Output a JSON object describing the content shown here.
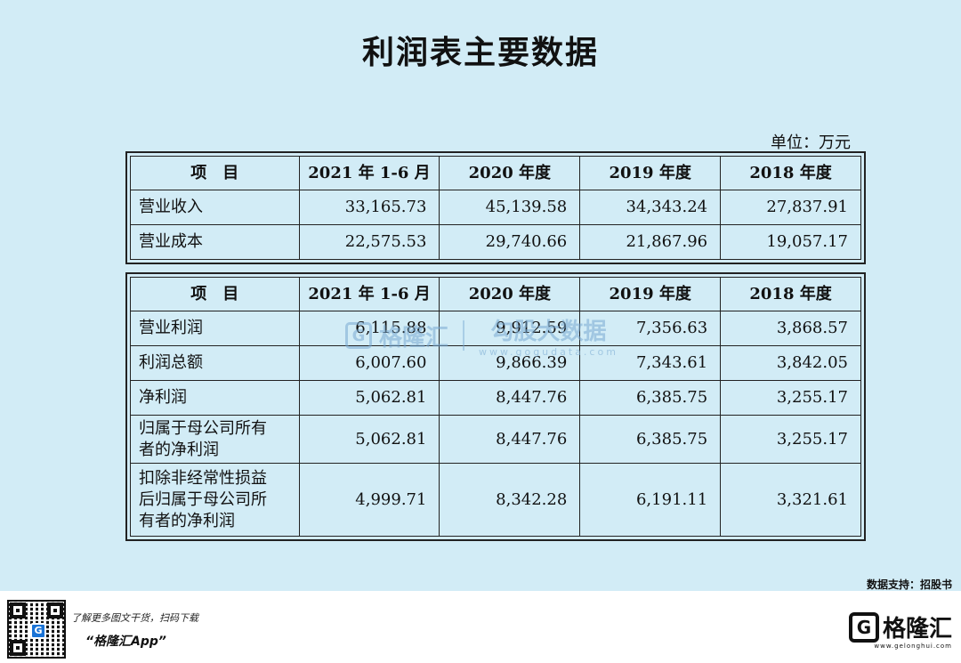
{
  "title": "利润表主要数据",
  "unit": "单位：万元",
  "table1": {
    "headers": [
      "项　目",
      "2021 年 1-6 月",
      "2020 年度",
      "2019 年度",
      "2018 年度"
    ],
    "rows": [
      {
        "label": "营业收入",
        "values": [
          "33,165.73",
          "45,139.58",
          "34,343.24",
          "27,837.91"
        ]
      },
      {
        "label": "营业成本",
        "values": [
          "22,575.53",
          "29,740.66",
          "21,867.96",
          "19,057.17"
        ]
      }
    ]
  },
  "table2": {
    "headers": [
      "项　目",
      "2021 年 1-6 月",
      "2020 年度",
      "2019 年度",
      "2018 年度"
    ],
    "rows": [
      {
        "label": "营业利润",
        "values": [
          "6,115.88",
          "9,912.59",
          "7,356.63",
          "3,868.57"
        ]
      },
      {
        "label": "利润总额",
        "values": [
          "6,007.60",
          "9,866.39",
          "7,343.61",
          "3,842.05"
        ]
      },
      {
        "label": "净利润",
        "values": [
          "5,062.81",
          "8,447.76",
          "6,385.75",
          "3,255.17"
        ]
      },
      {
        "label_lines": [
          "归属于母公司所有",
          "者的净利润"
        ],
        "values": [
          "5,062.81",
          "8,447.76",
          "6,385.75",
          "3,255.17"
        ]
      },
      {
        "label_lines": [
          "扣除非经常性损益",
          "后归属于母公司所",
          "有者的净利润"
        ],
        "values": [
          "4,999.71",
          "8,342.28",
          "6,191.11",
          "3,321.61"
        ]
      }
    ]
  },
  "watermark": {
    "logo": "G",
    "name": "格隆汇",
    "sub": "勾股大数据",
    "url": "www.gogudata.com"
  },
  "source": "数据支持：招股书",
  "footer": {
    "promo": "了解更多图文干货，扫码下载",
    "app": "“格隆汇App”",
    "qr_center": "G",
    "brand_logo": "G",
    "brand_name": "格隆汇",
    "brand_url": "www.gelonghui.com"
  }
}
